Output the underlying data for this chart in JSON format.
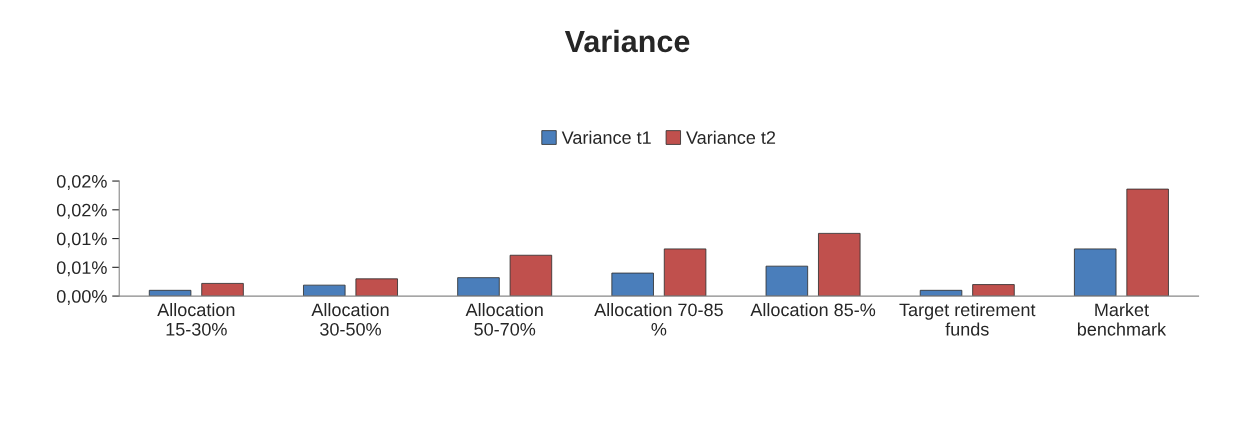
{
  "chart_data": {
    "type": "bar",
    "title": "Variance",
    "categories": [
      "Allocation 15-30%",
      "Allocation 30-50%",
      "Allocation 50-70%",
      "Allocation 70-85 %",
      "Allocation 85-%",
      "Target retirement funds",
      "Market benchmark"
    ],
    "series": [
      {
        "name": "Variance t1",
        "color": "#4a7ebb",
        "values": [
          0.001,
          0.0019,
          0.0032,
          0.004,
          0.0052,
          0.001,
          0.0082
        ]
      },
      {
        "name": "Variance t2",
        "color": "#c0504d",
        "values": [
          0.0022,
          0.003,
          0.0071,
          0.0082,
          0.0109,
          0.002,
          0.0186
        ]
      }
    ],
    "ylim": [
      0,
      0.02
    ],
    "yticks": [
      {
        "value": 0,
        "label": "0,00%"
      },
      {
        "value": 0.005,
        "label": "0,01%"
      },
      {
        "value": 0.01,
        "label": "0,01%"
      },
      {
        "value": 0.015,
        "label": "0,02%"
      },
      {
        "value": 0.02,
        "label": "0,02%"
      }
    ],
    "grid": false,
    "legend": "top"
  }
}
